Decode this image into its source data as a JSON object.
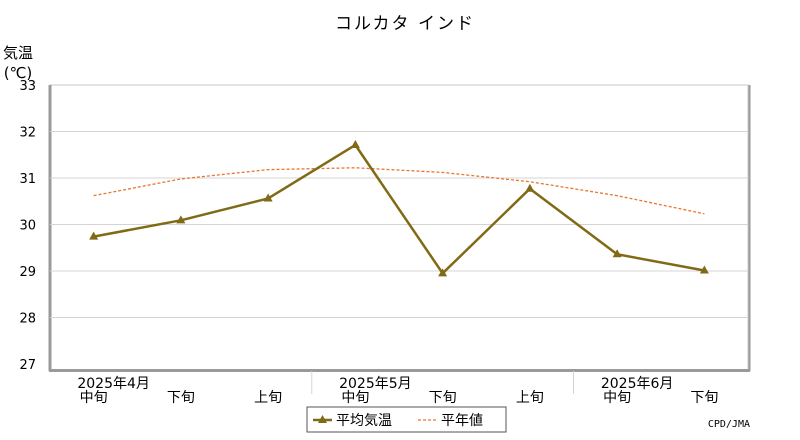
{
  "chart_data": {
    "type": "line",
    "title": "コルカタ インド",
    "ylabel_line1": "気温",
    "ylabel_line2": "(℃)",
    "ylim": [
      27,
      33
    ],
    "yticks": [
      27,
      28,
      29,
      30,
      31,
      32,
      33
    ],
    "grid": true,
    "legend_position": "bottom",
    "x_periods": [
      "中旬",
      "下旬",
      "上旬",
      "中旬",
      "下旬",
      "上旬",
      "中旬",
      "下旬"
    ],
    "x_months": [
      {
        "label": "2025年4月",
        "index": 0
      },
      {
        "label": "2025年5月",
        "index": 3
      },
      {
        "label": "2025年6月",
        "index": 6
      }
    ],
    "series": [
      {
        "name": "平均気温",
        "style": "solid-triangle",
        "color": "#806a15",
        "values": [
          29.74,
          30.09,
          30.56,
          31.71,
          28.95,
          30.77,
          29.36,
          29.01
        ]
      },
      {
        "name": "平年値",
        "style": "dashed",
        "color": "#e8772e",
        "values": [
          30.62,
          30.98,
          31.18,
          31.22,
          31.12,
          30.92,
          30.62,
          30.23
        ]
      }
    ],
    "credit": "CPD/JMA"
  }
}
